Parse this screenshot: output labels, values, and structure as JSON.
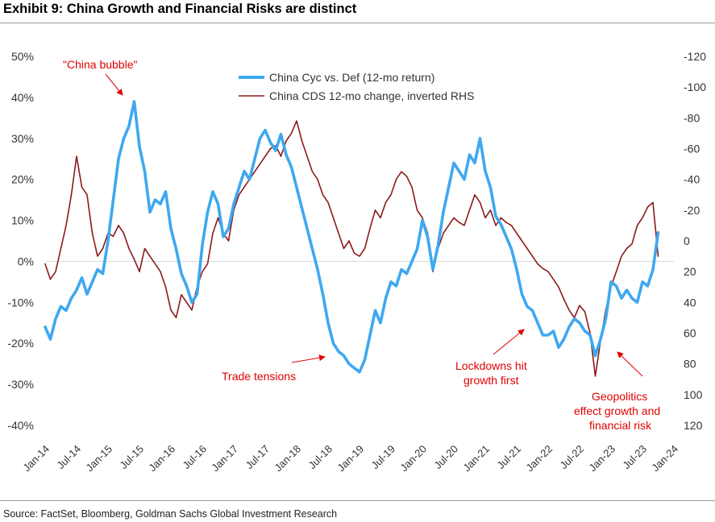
{
  "title": "Exhibit 9: China Growth and Financial Risks are distinct",
  "source": "Source: FactSet, Bloomberg, Goldman Sachs Global Investment Research",
  "colors": {
    "cyc": "#3ea8f0",
    "cds": "#8b1a1a",
    "annotation": "#e00000",
    "zero": "#d9d9d9"
  },
  "chart_data": {
    "type": "line",
    "grid": false,
    "legend_position": "top-center",
    "x_ticks": [
      "Jan-14",
      "Jul-14",
      "Jan-15",
      "Jul-15",
      "Jan-16",
      "Jul-16",
      "Jan-17",
      "Jul-17",
      "Jan-18",
      "Jul-18",
      "Jan-19",
      "Jul-19",
      "Jan-20",
      "Jul-20",
      "Jan-21",
      "Jul-21",
      "Jan-22",
      "Jul-22",
      "Jan-23",
      "Jul-23",
      "Jan-24"
    ],
    "y_left": {
      "ticks": [
        "50%",
        "40%",
        "30%",
        "20%",
        "10%",
        "0%",
        "-10%",
        "-20%",
        "-30%",
        "-40%"
      ],
      "range": [
        -40,
        50
      ],
      "unit": "%"
    },
    "y_right": {
      "ticks": [
        "-120",
        "-100",
        "-80",
        "-60",
        "-40",
        "-20",
        "0",
        "20",
        "40",
        "60",
        "80",
        "100",
        "120"
      ],
      "range": [
        -120,
        120
      ],
      "inverted": true
    },
    "series": [
      {
        "name": "China Cyc vs. Def (12-mo return)",
        "axis": "left",
        "points": [
          [
            "2014-01",
            -16
          ],
          [
            "2014-02",
            -19
          ],
          [
            "2014-03",
            -14
          ],
          [
            "2014-04",
            -11
          ],
          [
            "2014-05",
            -12
          ],
          [
            "2014-06",
            -9
          ],
          [
            "2014-07",
            -7
          ],
          [
            "2014-08",
            -4
          ],
          [
            "2014-09",
            -8
          ],
          [
            "2014-10",
            -5
          ],
          [
            "2014-11",
            -2
          ],
          [
            "2014-12",
            -3
          ],
          [
            "2015-01",
            5
          ],
          [
            "2015-02",
            15
          ],
          [
            "2015-03",
            25
          ],
          [
            "2015-04",
            30
          ],
          [
            "2015-05",
            33
          ],
          [
            "2015-06",
            39
          ],
          [
            "2015-07",
            28
          ],
          [
            "2015-08",
            22
          ],
          [
            "2015-09",
            12
          ],
          [
            "2015-10",
            15
          ],
          [
            "2015-11",
            14
          ],
          [
            "2015-12",
            17
          ],
          [
            "2016-01",
            8
          ],
          [
            "2016-02",
            3
          ],
          [
            "2016-03",
            -3
          ],
          [
            "2016-04",
            -6
          ],
          [
            "2016-05",
            -10
          ],
          [
            "2016-06",
            -8
          ],
          [
            "2016-07",
            4
          ],
          [
            "2016-08",
            12
          ],
          [
            "2016-09",
            17
          ],
          [
            "2016-10",
            14
          ],
          [
            "2016-11",
            6
          ],
          [
            "2016-12",
            8
          ],
          [
            "2017-01",
            14
          ],
          [
            "2017-02",
            18
          ],
          [
            "2017-03",
            22
          ],
          [
            "2017-04",
            20
          ],
          [
            "2017-05",
            25
          ],
          [
            "2017-06",
            30
          ],
          [
            "2017-07",
            32
          ],
          [
            "2017-08",
            29
          ],
          [
            "2017-09",
            27
          ],
          [
            "2017-10",
            31
          ],
          [
            "2017-11",
            26
          ],
          [
            "2017-12",
            23
          ],
          [
            "2018-01",
            18
          ],
          [
            "2018-02",
            13
          ],
          [
            "2018-03",
            8
          ],
          [
            "2018-04",
            3
          ],
          [
            "2018-05",
            -2
          ],
          [
            "2018-06",
            -8
          ],
          [
            "2018-07",
            -15
          ],
          [
            "2018-08",
            -20
          ],
          [
            "2018-09",
            -22
          ],
          [
            "2018-10",
            -23
          ],
          [
            "2018-11",
            -25
          ],
          [
            "2018-12",
            -26
          ],
          [
            "2019-01",
            -27
          ],
          [
            "2019-02",
            -24
          ],
          [
            "2019-03",
            -18
          ],
          [
            "2019-04",
            -12
          ],
          [
            "2019-05",
            -15
          ],
          [
            "2019-06",
            -9
          ],
          [
            "2019-07",
            -5
          ],
          [
            "2019-08",
            -6
          ],
          [
            "2019-09",
            -2
          ],
          [
            "2019-10",
            -3
          ],
          [
            "2019-11",
            0
          ],
          [
            "2019-12",
            3
          ],
          [
            "2020-01",
            10
          ],
          [
            "2020-02",
            6
          ],
          [
            "2020-03",
            -2
          ],
          [
            "2020-04",
            4
          ],
          [
            "2020-05",
            12
          ],
          [
            "2020-06",
            18
          ],
          [
            "2020-07",
            24
          ],
          [
            "2020-08",
            22
          ],
          [
            "2020-09",
            20
          ],
          [
            "2020-10",
            26
          ],
          [
            "2020-11",
            24
          ],
          [
            "2020-12",
            30
          ],
          [
            "2021-01",
            22
          ],
          [
            "2021-02",
            18
          ],
          [
            "2021-03",
            11
          ],
          [
            "2021-04",
            9
          ],
          [
            "2021-05",
            6
          ],
          [
            "2021-06",
            3
          ],
          [
            "2021-07",
            -2
          ],
          [
            "2021-08",
            -8
          ],
          [
            "2021-09",
            -11
          ],
          [
            "2021-10",
            -12
          ],
          [
            "2021-11",
            -15
          ],
          [
            "2021-12",
            -18
          ],
          [
            "2022-01",
            -18
          ],
          [
            "2022-02",
            -17
          ],
          [
            "2022-03",
            -21
          ],
          [
            "2022-04",
            -19
          ],
          [
            "2022-05",
            -16
          ],
          [
            "2022-06",
            -14
          ],
          [
            "2022-07",
            -15
          ],
          [
            "2022-08",
            -17
          ],
          [
            "2022-09",
            -18
          ],
          [
            "2022-10",
            -23
          ],
          [
            "2022-11",
            -19
          ],
          [
            "2022-12",
            -14
          ],
          [
            "2023-01",
            -5
          ],
          [
            "2023-02",
            -6
          ],
          [
            "2023-03",
            -9
          ],
          [
            "2023-04",
            -7
          ],
          [
            "2023-05",
            -9
          ],
          [
            "2023-06",
            -10
          ],
          [
            "2023-07",
            -5
          ],
          [
            "2023-08",
            -6
          ],
          [
            "2023-09",
            -2
          ],
          [
            "2023-10",
            7
          ]
        ]
      },
      {
        "name": "China CDS 12-mo change, inverted RHS",
        "axis": "right",
        "points": [
          [
            "2014-01",
            15
          ],
          [
            "2014-02",
            25
          ],
          [
            "2014-03",
            20
          ],
          [
            "2014-04",
            5
          ],
          [
            "2014-05",
            -10
          ],
          [
            "2014-06",
            -30
          ],
          [
            "2014-07",
            -55
          ],
          [
            "2014-08",
            -35
          ],
          [
            "2014-09",
            -30
          ],
          [
            "2014-10",
            -5
          ],
          [
            "2014-11",
            10
          ],
          [
            "2014-12",
            5
          ],
          [
            "2015-01",
            -5
          ],
          [
            "2015-02",
            -3
          ],
          [
            "2015-03",
            -10
          ],
          [
            "2015-04",
            -5
          ],
          [
            "2015-05",
            5
          ],
          [
            "2015-06",
            12
          ],
          [
            "2015-07",
            20
          ],
          [
            "2015-08",
            5
          ],
          [
            "2015-09",
            10
          ],
          [
            "2015-10",
            15
          ],
          [
            "2015-11",
            20
          ],
          [
            "2015-12",
            30
          ],
          [
            "2016-01",
            45
          ],
          [
            "2016-02",
            50
          ],
          [
            "2016-03",
            35
          ],
          [
            "2016-04",
            40
          ],
          [
            "2016-05",
            45
          ],
          [
            "2016-06",
            30
          ],
          [
            "2016-07",
            20
          ],
          [
            "2016-08",
            15
          ],
          [
            "2016-09",
            -5
          ],
          [
            "2016-10",
            -15
          ],
          [
            "2016-11",
            -5
          ],
          [
            "2016-12",
            0
          ],
          [
            "2017-01",
            -20
          ],
          [
            "2017-02",
            -30
          ],
          [
            "2017-03",
            -35
          ],
          [
            "2017-04",
            -40
          ],
          [
            "2017-05",
            -45
          ],
          [
            "2017-06",
            -50
          ],
          [
            "2017-07",
            -55
          ],
          [
            "2017-08",
            -60
          ],
          [
            "2017-09",
            -62
          ],
          [
            "2017-10",
            -55
          ],
          [
            "2017-11",
            -65
          ],
          [
            "2017-12",
            -70
          ],
          [
            "2018-01",
            -78
          ],
          [
            "2018-02",
            -65
          ],
          [
            "2018-03",
            -55
          ],
          [
            "2018-04",
            -45
          ],
          [
            "2018-05",
            -40
          ],
          [
            "2018-06",
            -30
          ],
          [
            "2018-07",
            -25
          ],
          [
            "2018-08",
            -15
          ],
          [
            "2018-09",
            -5
          ],
          [
            "2018-10",
            5
          ],
          [
            "2018-11",
            0
          ],
          [
            "2018-12",
            8
          ],
          [
            "2019-01",
            10
          ],
          [
            "2019-02",
            5
          ],
          [
            "2019-03",
            -8
          ],
          [
            "2019-04",
            -20
          ],
          [
            "2019-05",
            -15
          ],
          [
            "2019-06",
            -25
          ],
          [
            "2019-07",
            -30
          ],
          [
            "2019-08",
            -40
          ],
          [
            "2019-09",
            -45
          ],
          [
            "2019-10",
            -42
          ],
          [
            "2019-11",
            -35
          ],
          [
            "2019-12",
            -20
          ],
          [
            "2020-01",
            -15
          ],
          [
            "2020-02",
            -5
          ],
          [
            "2020-03",
            20
          ],
          [
            "2020-04",
            5
          ],
          [
            "2020-05",
            -5
          ],
          [
            "2020-06",
            -10
          ],
          [
            "2020-07",
            -15
          ],
          [
            "2020-08",
            -12
          ],
          [
            "2020-09",
            -10
          ],
          [
            "2020-10",
            -20
          ],
          [
            "2020-11",
            -30
          ],
          [
            "2020-12",
            -25
          ],
          [
            "2021-01",
            -15
          ],
          [
            "2021-02",
            -20
          ],
          [
            "2021-03",
            -10
          ],
          [
            "2021-04",
            -15
          ],
          [
            "2021-05",
            -12
          ],
          [
            "2021-06",
            -10
          ],
          [
            "2021-07",
            -5
          ],
          [
            "2021-08",
            0
          ],
          [
            "2021-09",
            5
          ],
          [
            "2021-10",
            10
          ],
          [
            "2021-11",
            15
          ],
          [
            "2021-12",
            18
          ],
          [
            "2022-01",
            20
          ],
          [
            "2022-02",
            25
          ],
          [
            "2022-03",
            30
          ],
          [
            "2022-04",
            38
          ],
          [
            "2022-05",
            45
          ],
          [
            "2022-06",
            50
          ],
          [
            "2022-07",
            42
          ],
          [
            "2022-08",
            46
          ],
          [
            "2022-09",
            60
          ],
          [
            "2022-10",
            88
          ],
          [
            "2022-11",
            65
          ],
          [
            "2022-12",
            45
          ],
          [
            "2023-01",
            30
          ],
          [
            "2023-02",
            20
          ],
          [
            "2023-03",
            10
          ],
          [
            "2023-04",
            5
          ],
          [
            "2023-05",
            2
          ],
          [
            "2023-06",
            -10
          ],
          [
            "2023-07",
            -15
          ],
          [
            "2023-08",
            -22
          ],
          [
            "2023-09",
            -25
          ],
          [
            "2023-10",
            10
          ]
        ]
      }
    ],
    "annotations": [
      {
        "text": "\"China bubble\""
      },
      {
        "text": "Trade tensions"
      },
      {
        "text": "Lockdowns hit growth first"
      },
      {
        "text": "Geopolitics effect growth and financial risk"
      }
    ]
  }
}
